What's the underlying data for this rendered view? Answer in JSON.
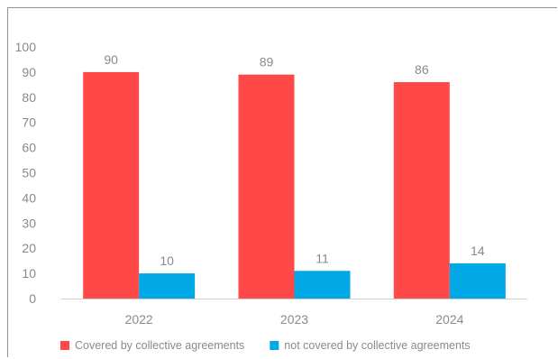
{
  "chart_data": {
    "type": "bar",
    "categories": [
      "2022",
      "2023",
      "2024"
    ],
    "series": [
      {
        "name": "Covered by collective agreements",
        "values": [
          90,
          89,
          86
        ],
        "color": "#ff4848"
      },
      {
        "name": "not covered by collective agreements",
        "values": [
          10,
          11,
          14
        ],
        "color": "#00a8e6"
      }
    ],
    "yticks": [
      "0",
      "10",
      "20",
      "30",
      "40",
      "50",
      "60",
      "70",
      "80",
      "90",
      "100"
    ],
    "ylim": [
      0,
      100
    ],
    "grid": false,
    "legend_position": "bottom",
    "data_labels": true,
    "axis_color": "#d0d0d0"
  }
}
